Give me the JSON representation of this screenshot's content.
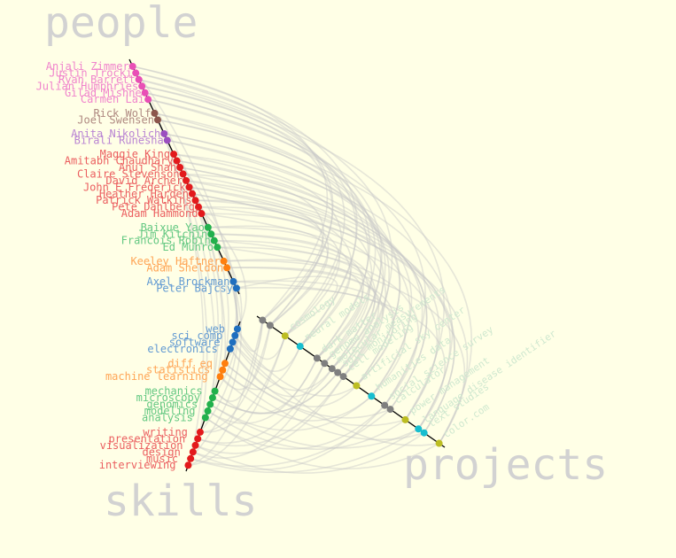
{
  "chart_data": {
    "type": "hive-plot",
    "axes": [
      {
        "name": "people",
        "title": "people"
      },
      {
        "name": "skills",
        "title": "skills"
      },
      {
        "name": "projects",
        "title": "projects"
      }
    ],
    "colors": {
      "background": "#ffffe6",
      "axis": "#000000",
      "edge": "#c8c8c8",
      "title": "#d2d2d2"
    },
    "people": {
      "groups": [
        {
          "color": "#e94fb6",
          "members": [
            "Anjali Zimmer",
            "Justin Trocki",
            "Ryan Barrett",
            "Julian Humphries",
            "Gilad Mishne",
            "Carmen Lai"
          ]
        },
        {
          "color": "#8c564b",
          "members": [
            "Rick Wolf",
            "Joel Swensen"
          ]
        },
        {
          "color": "#9b4fc0",
          "members": [
            "Anita Nikolich",
            "Birali Runesha"
          ]
        },
        {
          "color": "#e31a1c",
          "members": [
            "Maggie King",
            "Amitabh Chaudhary",
            "Anuj Shah",
            "Claire Stevenson",
            "David Archer",
            "John E Frederick",
            "Heather Harden",
            "Patrick Watkins",
            "Pete Dahlberg",
            "Adam Hammond"
          ]
        },
        {
          "color": "#22b14c",
          "members": [
            "Baixue Yao",
            "Jim Kitchin",
            "Francois Robin",
            "Ed Munro"
          ]
        },
        {
          "color": "#ff7f0e",
          "members": [
            "Keeley Haftner",
            "Adam Sheldon"
          ]
        },
        {
          "color": "#1f6fbf",
          "members": [
            "Axel Brockman",
            "Peter Bajcsy"
          ]
        }
      ]
    },
    "skills": {
      "groups": [
        {
          "color": "#1f6fbf",
          "members": [
            "web",
            "sci comp",
            "software",
            "electronics"
          ]
        },
        {
          "color": "#ff7f0e",
          "members": [
            "diff eq",
            "statistics",
            "machine learning"
          ]
        },
        {
          "color": "#22b14c",
          "members": [
            "mechanics",
            "microscopy",
            "genomics",
            "modeling",
            "analysis"
          ]
        },
        {
          "color": "#e31a1c",
          "members": [
            "writing",
            "presentation",
            "visualization",
            "design",
            "music",
            "interviewing"
          ]
        }
      ]
    },
    "projects": {
      "label_color": "#cfe8cf",
      "nodes": [
        {
          "color": "#7f7f7f",
          "label": ""
        },
        {
          "color": "#7f7f7f",
          "label": ""
        },
        {
          "color": "#bcbd22",
          "label": "cosmology"
        },
        {
          "color": "#17becf",
          "label": "neural models"
        },
        {
          "color": "#7f7f7f",
          "label": "dark matter"
        },
        {
          "color": "#7f7f7f",
          "label": "genome analysis"
        },
        {
          "color": "#7f7f7f",
          "label": "molecular measurements"
        },
        {
          "color": "#7f7f7f",
          "label": "soil monitoring"
        },
        {
          "color": "#7f7f7f",
          "label": "cell modeling"
        },
        {
          "color": "#bcbd22",
          "label": "artificial sky center"
        },
        {
          "color": "#17becf",
          "label": "humanities data"
        },
        {
          "color": "#7f7f7f",
          "label": "social science survey"
        },
        {
          "color": "#7f7f7f",
          "label": "calculator"
        },
        {
          "color": "#bcbd22",
          "label": "power management"
        },
        {
          "color": "#17becf",
          "label": "language disease identifier"
        },
        {
          "color": "#17becf",
          "label": "text studies"
        },
        {
          "color": "#bcbd22",
          "label": "color.com"
        }
      ]
    }
  }
}
